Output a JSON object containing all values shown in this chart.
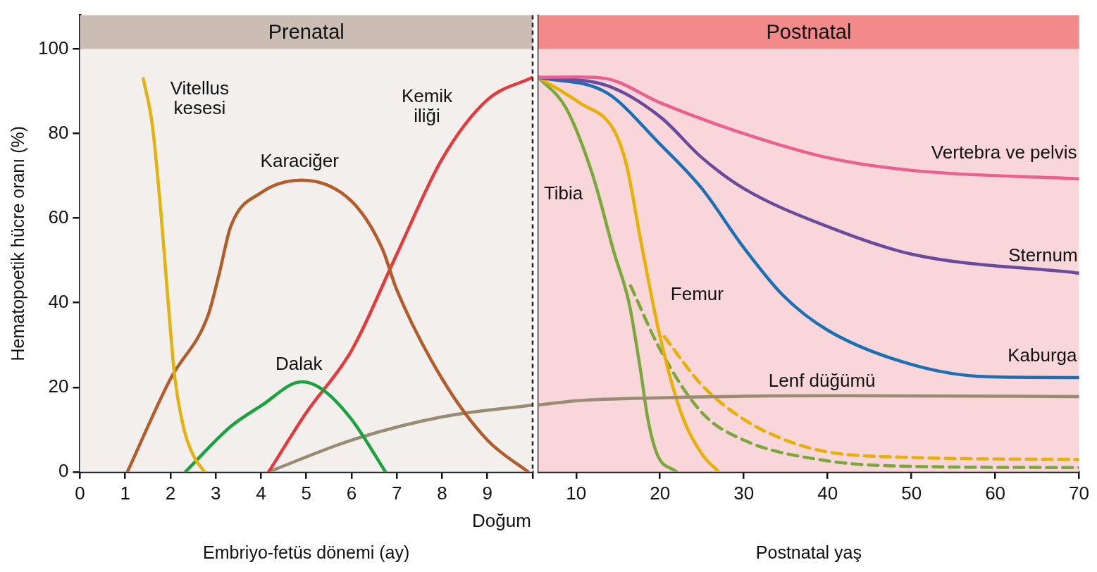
{
  "chart_data": [
    {
      "type": "line",
      "xlabel": "Embriyo-fetüs dönemi (ay)",
      "ylabel": "Hematopoetik hücre oranı (%)",
      "xlim": [
        0,
        10
      ],
      "xticks": [
        0,
        1,
        2,
        3,
        4,
        5,
        6,
        7,
        8,
        9,
        {
          "value": 10,
          "label": null
        }
      ],
      "ylim": [
        0,
        108
      ],
      "yticks": [
        0,
        20,
        40,
        60,
        80,
        100
      ],
      "grid": false,
      "legend": false,
      "bands": [
        {
          "axis": "y",
          "from": 0,
          "to": 100,
          "color": "#f2efed"
        },
        {
          "axis": "y",
          "from": 100,
          "to": 108,
          "label": "Prenatal",
          "color": "#cbbdb3"
        }
      ],
      "ref_lines": [
        {
          "axis": "x",
          "value": 10,
          "label": "Doğum",
          "color": "#222222",
          "line_style": "dashed"
        }
      ],
      "series": [
        {
          "name": "Vitellus kesesi",
          "color": "#e3b20c",
          "x": [
            1.4,
            1.6,
            1.8,
            1.95,
            2.1,
            2.3,
            2.5,
            2.75
          ],
          "values": [
            93,
            82,
            60,
            40,
            22,
            10,
            4,
            0
          ]
        },
        {
          "name": "Karaciğer",
          "color": "#b45b2a",
          "x": [
            1.05,
            2,
            2.83,
            3.08,
            3.33,
            4,
            4.9,
            6,
            6.67,
            7,
            8,
            9,
            9.9
          ],
          "values": [
            0,
            22,
            37,
            47,
            58,
            66,
            69,
            64,
            53,
            43,
            22,
            7.5,
            0
          ]
        },
        {
          "name": "Dalak",
          "color": "#19a33c",
          "x": [
            2.33,
            3.33,
            4,
            4.9,
            5.33,
            6,
            6.75
          ],
          "values": [
            0,
            10.7,
            15.6,
            21.3,
            19.7,
            12.4,
            0
          ]
        },
        {
          "name": "Kemik iliği",
          "color": "#e8383a",
          "x": [
            4.17,
            5,
            6,
            7,
            8,
            9,
            10
          ],
          "values": [
            0,
            14,
            28.7,
            51.5,
            74,
            88,
            93.3
          ]
        },
        {
          "color": "#9a8b73",
          "x": [
            4.17,
            6,
            8,
            10
          ],
          "values": [
            0,
            7.5,
            13,
            15.8
          ]
        }
      ]
    },
    {
      "type": "line",
      "xlabel": "Postnatal yaş",
      "xlim": [
        5.5,
        70
      ],
      "xticks": [
        10,
        20,
        30,
        40,
        50,
        60,
        70
      ],
      "ylim": [
        0,
        108
      ],
      "yticks": [
        0,
        20,
        40,
        60,
        80,
        100
      ],
      "tick_labels": "x",
      "grid": false,
      "legend": false,
      "bands": [
        {
          "axis": "y",
          "from": 0,
          "to": 100,
          "color": "#f9d6d9"
        },
        {
          "axis": "y",
          "from": 100,
          "to": 108,
          "label": "Postnatal",
          "color": "#f28a8a"
        }
      ],
      "series": [
        {
          "name": "Lenf düğümü",
          "color": "#9a8b73",
          "x": [
            5.5,
            10,
            20,
            40,
            70
          ],
          "values": [
            15.8,
            16.8,
            17.5,
            18,
            17.8
          ]
        },
        {
          "name": "Vertebra ve pelvis",
          "color": "#ec5f8e",
          "x": [
            5.5,
            10,
            13.6,
            20,
            30,
            40,
            50,
            70
          ],
          "values": [
            93.3,
            93.4,
            93,
            87.3,
            80,
            74.3,
            71.3,
            69.3
          ]
        },
        {
          "name": "Sternum",
          "color": "#6a4a9c",
          "x": [
            5.5,
            13.6,
            20,
            25,
            30,
            40,
            50,
            70
          ],
          "values": [
            93.3,
            91.4,
            84,
            74.3,
            67,
            58,
            51.5,
            47
          ]
        },
        {
          "name": "Kaburga",
          "color": "#1a6fb5",
          "x": [
            5.5,
            13.6,
            20,
            25,
            30,
            34.7,
            40,
            50,
            59,
            70
          ],
          "values": [
            93.3,
            89.7,
            77.5,
            67,
            53,
            41.7,
            33.5,
            25.4,
            22.5,
            22.3
          ]
        },
        {
          "name": "Femur",
          "color": "#e8b000",
          "x": [
            5.5,
            10.4,
            14.5,
            16,
            17.7,
            20,
            22.5,
            25,
            27
          ],
          "values": [
            93.3,
            87.3,
            80.8,
            72.6,
            54.7,
            32,
            14,
            4.2,
            0
          ]
        },
        {
          "color": "#e8b000",
          "line_style": "dashed",
          "x": [
            20.5,
            25,
            30,
            35,
            40,
            50,
            70
          ],
          "values": [
            32,
            20.5,
            12.4,
            7.5,
            4.7,
            3.4,
            2.9
          ]
        },
        {
          "name": "Tibia",
          "color": "#7aa83a",
          "x": [
            5.5,
            8.8,
            12,
            14.5,
            16.3,
            17.6,
            18.6,
            19.7,
            22
          ],
          "values": [
            93.3,
            86,
            70,
            52,
            40,
            25,
            12,
            4,
            0
          ]
        },
        {
          "color": "#7aa83a",
          "line_style": "dashed",
          "x": [
            16.5,
            20,
            25,
            30,
            40,
            50,
            70
          ],
          "values": [
            44,
            29,
            14,
            7.5,
            2.6,
            1.3,
            1
          ]
        }
      ]
    }
  ]
}
